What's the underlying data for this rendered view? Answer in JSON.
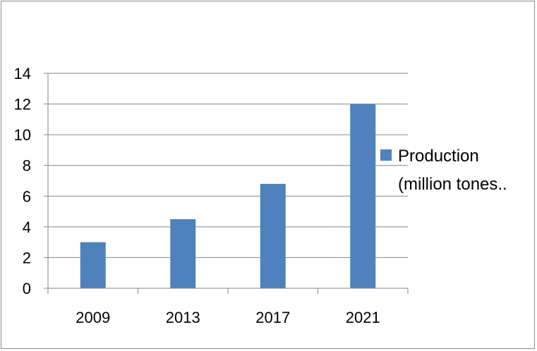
{
  "chart_data": {
    "type": "bar",
    "categories": [
      "2009",
      "2013",
      "2017",
      "2021"
    ],
    "series": [
      {
        "name": "Production (million tones..",
        "values": [
          3,
          4.5,
          6.8,
          12
        ]
      }
    ],
    "title": "",
    "xlabel": "",
    "ylabel": "",
    "ylim": [
      0,
      14
    ],
    "yticks": [
      "0",
      "2",
      "4",
      "6",
      "8",
      "10",
      "12",
      "14"
    ],
    "grid": true,
    "legend_position": "right",
    "legend_lines": [
      "Production",
      "(million tones.."
    ],
    "colors": {
      "bar": "#4f81bd",
      "grid": "#868686",
      "axis": "#868686"
    }
  }
}
